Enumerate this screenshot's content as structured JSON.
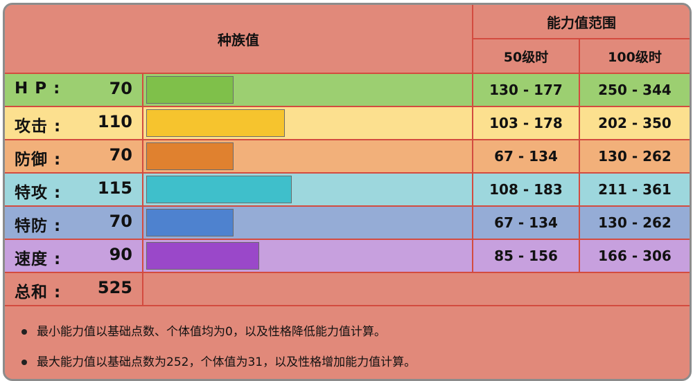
{
  "header": {
    "base_stats": "种族值",
    "range_title": "能力值范围",
    "level50": "50级时",
    "level100": "100级时"
  },
  "stats": [
    {
      "name": "H P :",
      "value": "70",
      "range50": "130 - 177",
      "range100": "250 - 344",
      "bar_fraction": 0.27,
      "bg": "#9ccf71",
      "bar": "#7fc04a"
    },
    {
      "name": "攻击 :",
      "value": "110",
      "range50": "103 - 178",
      "range100": "202 - 350",
      "bar_fraction": 0.43,
      "bg": "#fce08f",
      "bar": "#f6c42e"
    },
    {
      "name": "防御 :",
      "value": "70",
      "range50": "67 - 134",
      "range100": "130 - 262",
      "bar_fraction": 0.27,
      "bg": "#f2b07a",
      "bar": "#e0812f"
    },
    {
      "name": "特攻 :",
      "value": "115",
      "range50": "108 - 183",
      "range100": "211 - 361",
      "bar_fraction": 0.45,
      "bg": "#9dd7dd",
      "bar": "#3fbfcb"
    },
    {
      "name": "特防 :",
      "value": "70",
      "range50": "67 - 134",
      "range100": "130 - 262",
      "bar_fraction": 0.27,
      "bg": "#95acd6",
      "bar": "#4e82cf"
    },
    {
      "name": "速度 :",
      "value": "90",
      "range50": "85 - 156",
      "range100": "166 - 306",
      "bar_fraction": 0.35,
      "bg": "#c7a0de",
      "bar": "#9a48c9"
    }
  ],
  "total": {
    "name": "总和 :",
    "value": "525"
  },
  "notes": [
    "最小能力值以基础点数、个体值均为0，以及性格降低能力值计算。",
    "最大能力值以基础点数为252，个体值为31，以及性格增加能力值计算。"
  ]
}
